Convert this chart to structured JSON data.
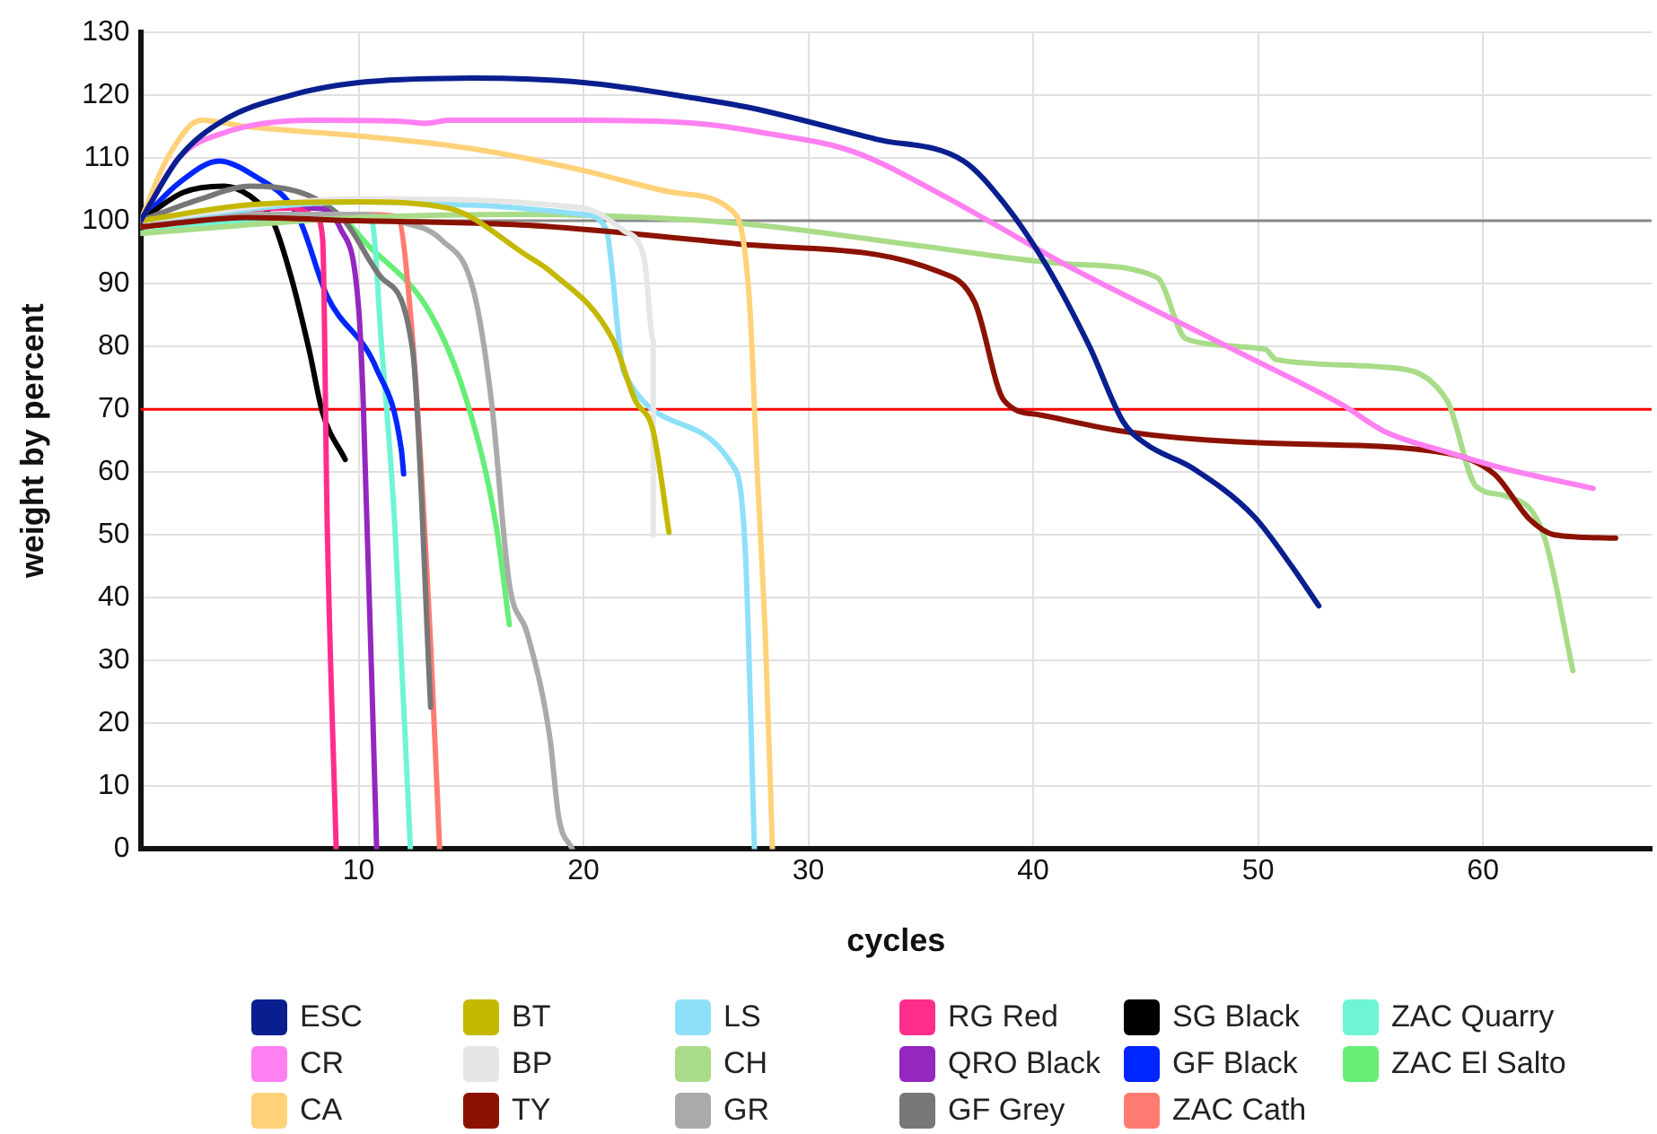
{
  "chart_data": {
    "type": "line",
    "xlabel": "cycles",
    "ylabel": "weight by percent",
    "xlim": [
      0.3,
      67.5
    ],
    "xticks": [
      10,
      20,
      30,
      40,
      50,
      60
    ],
    "ylim": [
      0,
      130
    ],
    "yticks": [
      0,
      10,
      20,
      30,
      40,
      50,
      60,
      70,
      80,
      90,
      100,
      110,
      120,
      130
    ],
    "grid": true,
    "legend": "bottom",
    "marker": "none",
    "line_style": "solid",
    "ref_lines": [
      {
        "axis": "y",
        "value": 100,
        "color": "#888888"
      },
      {
        "axis": "y",
        "value": 70,
        "color": "#ff0000"
      }
    ],
    "series": [
      {
        "name": "ESC",
        "color": "#0a1f8f",
        "x": [
          0.3,
          2,
          4,
          7,
          10,
          15,
          20,
          25,
          27.4,
          33,
          36.9,
          38.7,
          40.6,
          42.5,
          44,
          45,
          47.1,
          49.8,
          51.5,
          52.7
        ],
        "values": [
          100,
          110,
          116,
          120,
          122,
          122.7,
          122,
          119.5,
          118,
          113,
          109.5,
          102.8,
          92.8,
          80,
          68,
          64.5,
          60.6,
          53,
          45,
          38.7
        ]
      },
      {
        "name": "CR",
        "color": "#ff80f0",
        "x": [
          0.3,
          2,
          4,
          8,
          12,
          13,
          14,
          20,
          25,
          28,
          32,
          36,
          38,
          41.7,
          45,
          49.8,
          53.8,
          55.6,
          58.4,
          61,
          64.9
        ],
        "values": [
          100,
          110,
          114,
          116,
          115.8,
          115.5,
          116,
          116,
          115.5,
          114,
          111,
          104,
          100,
          92.5,
          86.5,
          77.9,
          70.6,
          66.5,
          63.2,
          60.5,
          57.4
        ]
      },
      {
        "name": "CA",
        "color": "#ffd27a",
        "x": [
          0.3,
          1.5,
          3,
          5,
          10,
          15,
          20,
          24,
          26.6,
          27.1,
          27.4,
          27.7,
          28.1,
          28.4
        ],
        "values": [
          100,
          110,
          116,
          115,
          113.5,
          111.5,
          108,
          104.5,
          101.6,
          97,
          86,
          62,
          32.5,
          0
        ]
      },
      {
        "name": "BT",
        "color": "#c4b800",
        "x": [
          0.3,
          5,
          10,
          14,
          17.5,
          18.5,
          21.3,
          22.3,
          23.1,
          23.8
        ],
        "values": [
          100,
          102.5,
          103,
          102,
          94.4,
          92,
          81.1,
          71.4,
          66.5,
          50.4
        ]
      },
      {
        "name": "BP",
        "color": "#e6e6e6",
        "x": [
          0.3,
          10,
          20,
          21.8,
          22.7,
          23.1,
          23.1
        ],
        "values": [
          100,
          103.5,
          102,
          98.4,
          94,
          81,
          50
        ]
      },
      {
        "name": "TY",
        "color": "#8b1200",
        "x": [
          0.3,
          5,
          10,
          17.5,
          26.9,
          35.8,
          37.4,
          38.7,
          40.3,
          44,
          49.8,
          58.4,
          60.5,
          62.1,
          63.2,
          65.9
        ],
        "values": [
          99,
          100.5,
          100,
          99.3,
          96.3,
          91.9,
          87,
          71.4,
          69.1,
          66.5,
          64.7,
          63,
          59.7,
          52.4,
          50,
          49.5
        ]
      },
      {
        "name": "LS",
        "color": "#8ee0f8",
        "x": [
          0.3,
          10,
          15,
          20,
          21,
          21.8,
          26.6,
          27.2,
          27.6
        ],
        "values": [
          100,
          103,
          102.5,
          101,
          98.7,
          75.8,
          61.2,
          47,
          0
        ]
      },
      {
        "name": "CH",
        "color": "#a8dc88",
        "x": [
          0.3,
          10,
          17,
          26.9,
          35,
          41.7,
          45.5,
          46.8,
          50.3,
          50.8,
          55.6,
          58.4,
          59.7,
          61,
          62.7,
          64
        ],
        "values": [
          98,
          100.5,
          101,
          99.6,
          96,
          93.1,
          91,
          81.2,
          79.6,
          77.9,
          76.7,
          71.4,
          57.7,
          56.2,
          50,
          28.4
        ]
      },
      {
        "name": "GR",
        "color": "#aaaaaa",
        "x": [
          0.3,
          5,
          10,
          11.9,
          13.7,
          15.1,
          15.9,
          16.7,
          17.5,
          18.5,
          18.9,
          19.5
        ],
        "values": [
          99,
          101,
          101,
          99.8,
          96.9,
          89,
          71.4,
          42.2,
          34.3,
          17.8,
          5,
          0
        ]
      },
      {
        "name": "RG Red",
        "color": "#ff2d8a",
        "x": [
          0.3,
          4,
          7,
          8.1,
          8.4,
          8.6,
          9
        ],
        "values": [
          100,
          101.5,
          102,
          100.7,
          97,
          51.9,
          0
        ]
      },
      {
        "name": "QRO Black",
        "color": "#9427bf",
        "x": [
          0.3,
          5,
          8,
          9.2,
          10,
          10.2,
          10.8
        ],
        "values": [
          100,
          102,
          102,
          98.7,
          86,
          71.4,
          0
        ]
      },
      {
        "name": "GF Grey",
        "color": "#777777",
        "x": [
          0.3,
          3,
          5.2,
          9.2,
          11,
          12.4,
          13.2
        ],
        "values": [
          100,
          103.5,
          105.5,
          100.7,
          91,
          79.4,
          22.6
        ]
      },
      {
        "name": "SG Black",
        "color": "#000000",
        "x": [
          0.3,
          2.2,
          4,
          5.5,
          6.2,
          7,
          7.8,
          8.4,
          9.4
        ],
        "values": [
          100,
          104.5,
          105.5,
          103,
          99.8,
          91,
          79.4,
          69.4,
          62
        ]
      },
      {
        "name": "GF Black",
        "color": "#0026ff",
        "x": [
          0.3,
          2,
          3.8,
          5.2,
          7.3,
          8.6,
          10.8,
          11.9,
          12
        ],
        "values": [
          100,
          106,
          109.5,
          107.5,
          100.7,
          88,
          76.4,
          63.5,
          59.7
        ]
      },
      {
        "name": "ZAC Cath",
        "color": "#ff7b72",
        "x": [
          0.3,
          5,
          10,
          11.7,
          12.4,
          13.2,
          13.6
        ],
        "values": [
          99,
          101,
          101,
          100.7,
          81,
          32.5,
          0
        ]
      },
      {
        "name": "ZAC Quarry",
        "color": "#6ef5d6",
        "x": [
          0.3,
          5,
          10,
          10.6,
          11,
          11.6,
          12.3
        ],
        "values": [
          98,
          100,
          101,
          99.8,
          81,
          52,
          0
        ]
      },
      {
        "name": "ZAC El Salto",
        "color": "#66ee77",
        "x": [
          0.3,
          5,
          9,
          10.5,
          13.2,
          14.8,
          16.1,
          16.7
        ],
        "values": [
          98,
          100,
          100.5,
          95.8,
          85.2,
          71.4,
          51.8,
          35.7
        ]
      }
    ]
  }
}
